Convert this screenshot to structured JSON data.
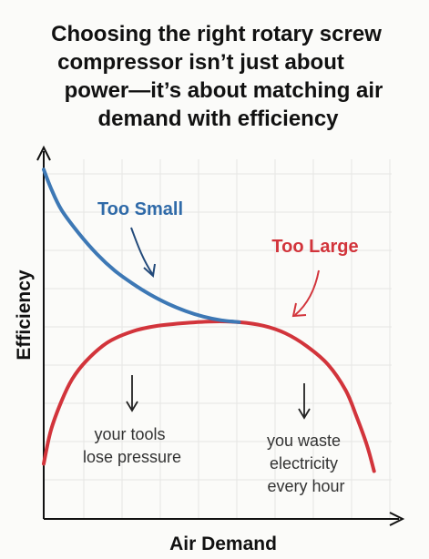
{
  "title_lines": [
    "Choosing the right rotary screw",
    "compressor isn’t just about",
    "power—it’s about matching air",
    "demand with efficiency"
  ],
  "chart_data": {
    "type": "line",
    "xlabel": "Air Demand",
    "ylabel": "Efficiency",
    "grid": true,
    "series": [
      {
        "name": "Too Small",
        "color": "#3d78b5",
        "points": [
          [
            0.0,
            0.95
          ],
          [
            0.02,
            0.9
          ],
          [
            0.05,
            0.84
          ],
          [
            0.1,
            0.775
          ],
          [
            0.15,
            0.72
          ],
          [
            0.2,
            0.675
          ],
          [
            0.25,
            0.64
          ],
          [
            0.3,
            0.61
          ],
          [
            0.35,
            0.585
          ],
          [
            0.4,
            0.565
          ],
          [
            0.45,
            0.55
          ],
          [
            0.5,
            0.54
          ],
          [
            0.55,
            0.535
          ]
        ]
      },
      {
        "name": "Too Large",
        "color": "#d2343b",
        "points": [
          [
            0.0,
            0.15
          ],
          [
            0.02,
            0.24
          ],
          [
            0.05,
            0.32
          ],
          [
            0.08,
            0.38
          ],
          [
            0.12,
            0.43
          ],
          [
            0.18,
            0.48
          ],
          [
            0.25,
            0.51
          ],
          [
            0.32,
            0.525
          ],
          [
            0.4,
            0.533
          ],
          [
            0.48,
            0.537
          ],
          [
            0.55,
            0.535
          ],
          [
            0.62,
            0.525
          ],
          [
            0.68,
            0.505
          ],
          [
            0.74,
            0.47
          ],
          [
            0.8,
            0.42
          ],
          [
            0.85,
            0.35
          ],
          [
            0.88,
            0.28
          ],
          [
            0.91,
            0.2
          ],
          [
            0.93,
            0.13
          ]
        ]
      }
    ],
    "annotations": [
      {
        "id": "tools",
        "lines": [
          "your tools",
          "lose pressure"
        ]
      },
      {
        "id": "waste",
        "lines": [
          "you waste",
          "electricity",
          "every hour"
        ]
      }
    ]
  }
}
